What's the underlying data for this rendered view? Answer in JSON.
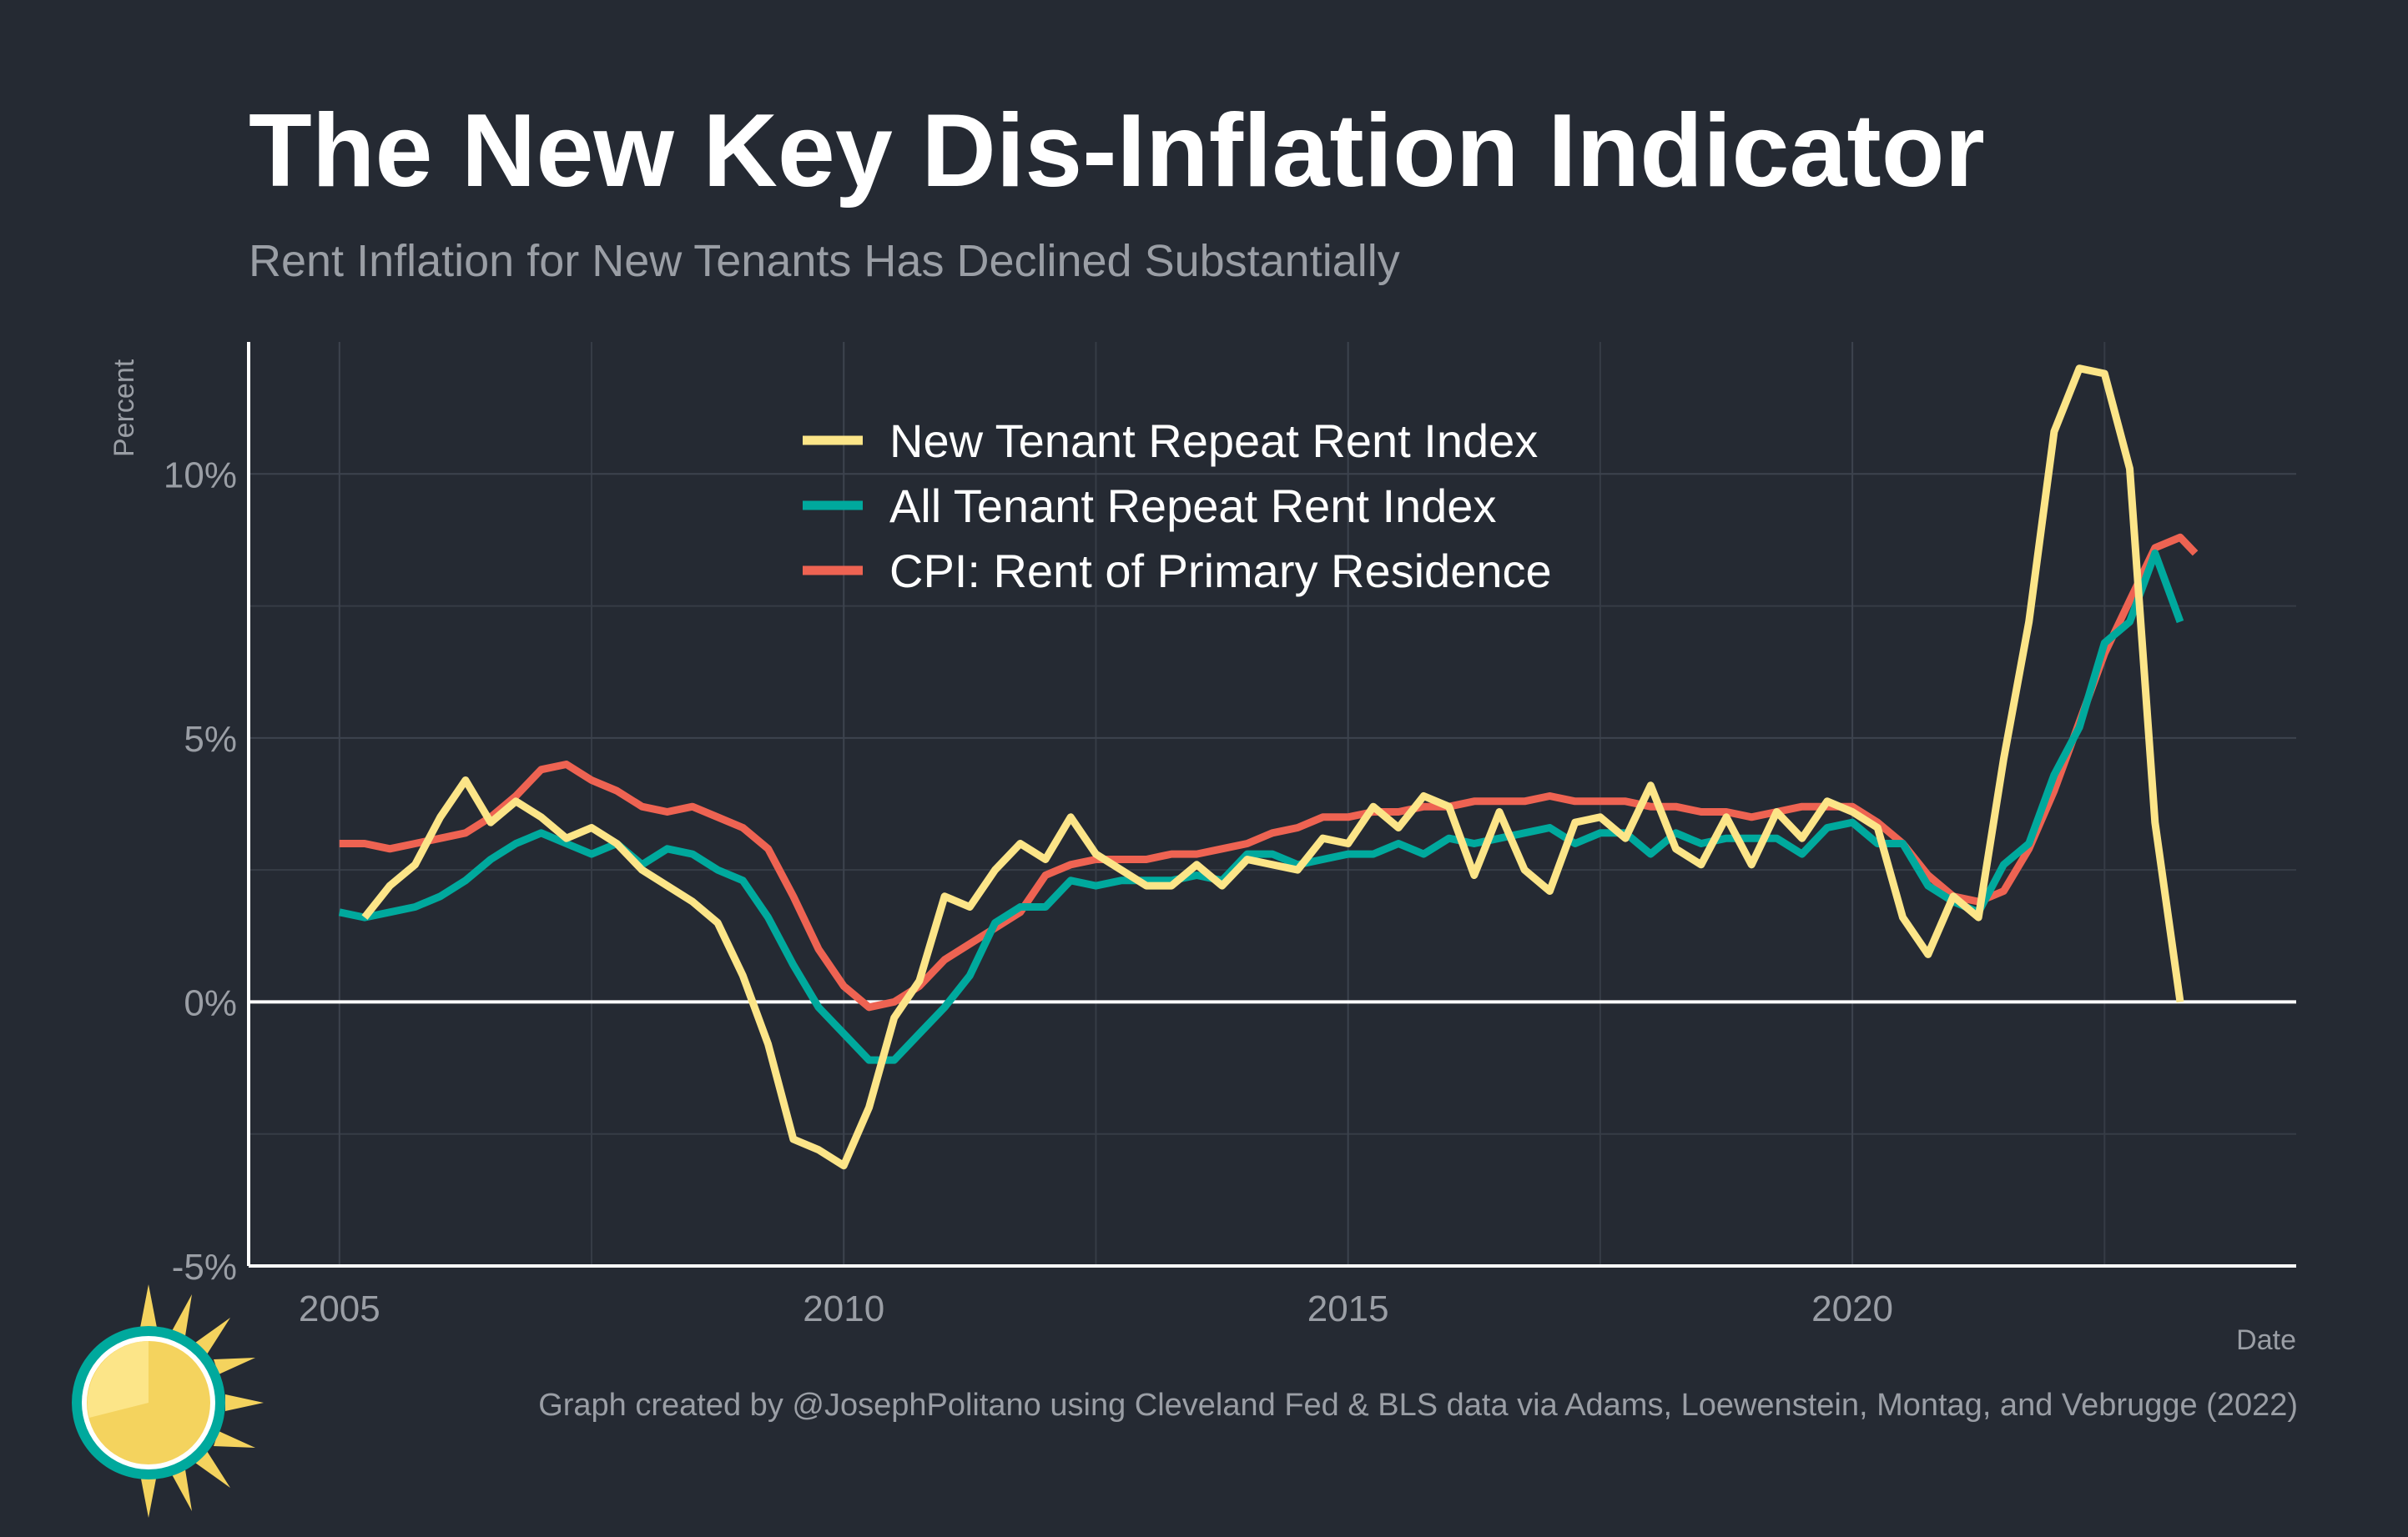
{
  "title": "The New Key Dis-Inflation Indicator",
  "subtitle": "Rent Inflation for New Tenants Has Declined Substantially",
  "caption": "Graph created by @JosephPolitano using Cleveland Fed & BLS data via Adams, Loewenstein, Montag, and Vebrugge (2022)",
  "chart_data": {
    "type": "line",
    "title": "The New Key Dis-Inflation Indicator",
    "subtitle": "Rent Inflation for New Tenants Has Declined Substantially",
    "xlabel": "Date",
    "ylabel": "Percent",
    "xlim": [
      2004.1,
      2024.4
    ],
    "ylim": [
      -5,
      12.5
    ],
    "x_ticks": [
      2005,
      2010,
      2015,
      2020
    ],
    "x_tick_labels": [
      "2005",
      "2010",
      "2015",
      "2020"
    ],
    "y_ticks": [
      -5,
      0,
      5,
      10
    ],
    "y_tick_labels": [
      "-5%",
      "0%",
      "5%",
      "10%"
    ],
    "grid": true,
    "legend_position": "top-center",
    "zero_line": true,
    "series": [
      {
        "name": "New Tenant Repeat Rent Index",
        "color": "#fce588",
        "x": [
          2005.25,
          2005.5,
          2005.75,
          2006.0,
          2006.25,
          2006.5,
          2006.75,
          2007.0,
          2007.25,
          2007.5,
          2007.75,
          2008.0,
          2008.25,
          2008.5,
          2008.75,
          2009.0,
          2009.25,
          2009.5,
          2009.75,
          2010.0,
          2010.25,
          2010.5,
          2010.75,
          2011.0,
          2011.25,
          2011.5,
          2011.75,
          2012.0,
          2012.25,
          2012.5,
          2012.75,
          2013.0,
          2013.25,
          2013.5,
          2013.75,
          2014.0,
          2014.25,
          2014.5,
          2014.75,
          2015.0,
          2015.25,
          2015.5,
          2015.75,
          2016.0,
          2016.25,
          2016.5,
          2016.75,
          2017.0,
          2017.25,
          2017.5,
          2017.75,
          2018.0,
          2018.25,
          2018.5,
          2018.75,
          2019.0,
          2019.25,
          2019.5,
          2019.75,
          2020.0,
          2020.25,
          2020.5,
          2020.75,
          2021.0,
          2021.25,
          2021.5,
          2021.75,
          2022.0,
          2022.25,
          2022.5,
          2022.75,
          2023.0,
          2023.25
        ],
        "values": [
          1.6,
          2.2,
          2.6,
          3.5,
          4.2,
          3.4,
          3.8,
          3.5,
          3.1,
          3.3,
          3.0,
          2.5,
          2.2,
          1.9,
          1.5,
          0.5,
          -0.8,
          -2.6,
          -2.8,
          -3.1,
          -2.0,
          -0.3,
          0.4,
          2.0,
          1.8,
          2.5,
          3.0,
          2.7,
          3.5,
          2.8,
          2.5,
          2.2,
          2.2,
          2.6,
          2.2,
          2.7,
          2.6,
          2.5,
          3.1,
          3.0,
          3.7,
          3.3,
          3.9,
          3.7,
          2.4,
          3.6,
          2.5,
          2.1,
          3.4,
          3.5,
          3.1,
          4.1,
          2.9,
          2.6,
          3.5,
          2.6,
          3.6,
          3.1,
          3.8,
          3.6,
          3.3,
          1.6,
          0.9,
          2.0,
          1.6,
          4.6,
          7.2,
          10.8,
          12.0,
          11.9,
          10.1,
          3.4,
          0.0
        ]
      },
      {
        "name": "All Tenant Repeat Rent Index",
        "color": "#00a99d",
        "x": [
          2005.0,
          2005.25,
          2005.5,
          2005.75,
          2006.0,
          2006.25,
          2006.5,
          2006.75,
          2007.0,
          2007.25,
          2007.5,
          2007.75,
          2008.0,
          2008.25,
          2008.5,
          2008.75,
          2009.0,
          2009.25,
          2009.5,
          2009.75,
          2010.0,
          2010.25,
          2010.5,
          2010.75,
          2011.0,
          2011.25,
          2011.5,
          2011.75,
          2012.0,
          2012.25,
          2012.5,
          2012.75,
          2013.0,
          2013.25,
          2013.5,
          2013.75,
          2014.0,
          2014.25,
          2014.5,
          2014.75,
          2015.0,
          2015.25,
          2015.5,
          2015.75,
          2016.0,
          2016.25,
          2016.5,
          2016.75,
          2017.0,
          2017.25,
          2017.5,
          2017.75,
          2018.0,
          2018.25,
          2018.5,
          2018.75,
          2019.0,
          2019.25,
          2019.5,
          2019.75,
          2020.0,
          2020.25,
          2020.5,
          2020.75,
          2021.0,
          2021.25,
          2021.5,
          2021.75,
          2022.0,
          2022.25,
          2022.5,
          2022.75,
          2023.0,
          2023.25
        ],
        "values": [
          1.7,
          1.6,
          1.7,
          1.8,
          2.0,
          2.3,
          2.7,
          3.0,
          3.2,
          3.0,
          2.8,
          3.0,
          2.6,
          2.9,
          2.8,
          2.5,
          2.3,
          1.6,
          0.7,
          -0.1,
          -0.6,
          -1.1,
          -1.1,
          -0.6,
          -0.1,
          0.5,
          1.5,
          1.8,
          1.8,
          2.3,
          2.2,
          2.3,
          2.3,
          2.3,
          2.4,
          2.3,
          2.8,
          2.8,
          2.6,
          2.7,
          2.8,
          2.8,
          3.0,
          2.8,
          3.1,
          3.0,
          3.1,
          3.2,
          3.3,
          3.0,
          3.2,
          3.2,
          2.8,
          3.2,
          3.0,
          3.1,
          3.1,
          3.1,
          2.8,
          3.3,
          3.4,
          3.0,
          3.0,
          2.2,
          1.9,
          1.7,
          2.6,
          3.0,
          4.3,
          5.2,
          6.8,
          7.2,
          8.5,
          7.2
        ]
      },
      {
        "name": "CPI: Rent of Primary Residence",
        "color": "#ee6352",
        "x": [
          2005.0,
          2005.25,
          2005.5,
          2005.75,
          2006.0,
          2006.25,
          2006.5,
          2006.75,
          2007.0,
          2007.25,
          2007.5,
          2007.75,
          2008.0,
          2008.25,
          2008.5,
          2008.75,
          2009.0,
          2009.25,
          2009.5,
          2009.75,
          2010.0,
          2010.25,
          2010.5,
          2010.75,
          2011.0,
          2011.25,
          2011.5,
          2011.75,
          2012.0,
          2012.25,
          2012.5,
          2012.75,
          2013.0,
          2013.25,
          2013.5,
          2013.75,
          2014.0,
          2014.25,
          2014.5,
          2014.75,
          2015.0,
          2015.25,
          2015.5,
          2015.75,
          2016.0,
          2016.25,
          2016.5,
          2016.75,
          2017.0,
          2017.25,
          2017.5,
          2017.75,
          2018.0,
          2018.25,
          2018.5,
          2018.75,
          2019.0,
          2019.25,
          2019.5,
          2019.75,
          2020.0,
          2020.25,
          2020.5,
          2020.75,
          2021.0,
          2021.25,
          2021.5,
          2021.75,
          2022.0,
          2022.25,
          2022.5,
          2022.75,
          2023.0,
          2023.25,
          2023.4
        ],
        "values": [
          3.0,
          3.0,
          2.9,
          3.0,
          3.1,
          3.2,
          3.5,
          3.9,
          4.4,
          4.5,
          4.2,
          4.0,
          3.7,
          3.6,
          3.7,
          3.5,
          3.3,
          2.9,
          2.0,
          1.0,
          0.3,
          -0.1,
          0.0,
          0.3,
          0.8,
          1.1,
          1.4,
          1.7,
          2.4,
          2.6,
          2.7,
          2.7,
          2.7,
          2.8,
          2.8,
          2.9,
          3.0,
          3.2,
          3.3,
          3.5,
          3.5,
          3.6,
          3.6,
          3.7,
          3.7,
          3.8,
          3.8,
          3.8,
          3.9,
          3.8,
          3.8,
          3.8,
          3.7,
          3.7,
          3.6,
          3.6,
          3.5,
          3.6,
          3.7,
          3.7,
          3.7,
          3.4,
          3.0,
          2.4,
          2.0,
          1.9,
          2.1,
          2.9,
          4.0,
          5.3,
          6.6,
          7.6,
          8.6,
          8.8,
          8.5
        ]
      }
    ]
  }
}
